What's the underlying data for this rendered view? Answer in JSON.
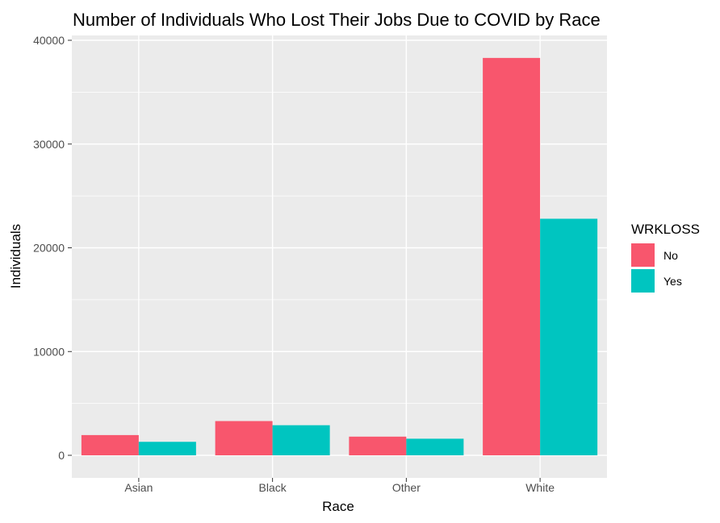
{
  "chart_data": {
    "type": "bar",
    "title": "Number of Individuals Who Lost Their Jobs Due to COVID by Race",
    "xlabel": "Race",
    "ylabel": "Individuals",
    "categories": [
      "Asian",
      "Black",
      "Other",
      "White"
    ],
    "series": [
      {
        "name": "No",
        "values": [
          1950,
          3300,
          1800,
          38300
        ],
        "color": "#F8566D"
      },
      {
        "name": "Yes",
        "values": [
          1300,
          2900,
          1600,
          22800
        ],
        "color": "#00C5C0"
      }
    ],
    "ylim": [
      0,
      40000
    ],
    "yticks": [
      0,
      10000,
      20000,
      30000,
      40000
    ],
    "ytick_labels": [
      "0",
      "10000",
      "20000",
      "30000",
      "40000"
    ],
    "legend_title": "WRKLOSS",
    "legend_position": "right",
    "grid": true,
    "panel_background": "#EBEBEB"
  }
}
